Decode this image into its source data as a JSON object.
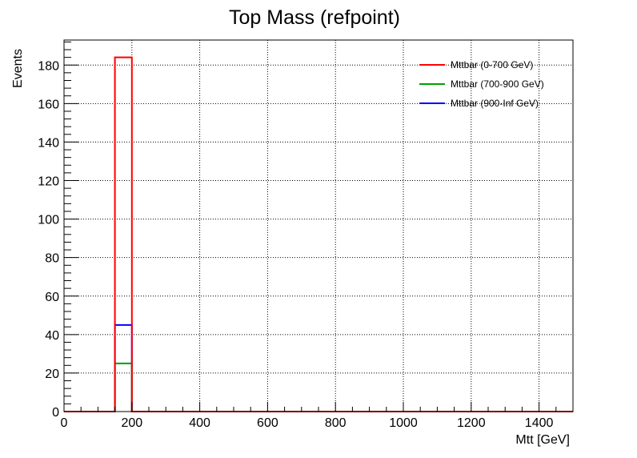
{
  "chart_data": {
    "type": "histogram",
    "title": "Top Mass (refpoint)",
    "xlabel": "Mtt [GeV]",
    "ylabel": "Events",
    "xlim": [
      0,
      1500
    ],
    "ylim": [
      0,
      193
    ],
    "grid": true,
    "legend_position": "top-right",
    "bin_width": 50,
    "x_ticks": [
      0,
      200,
      400,
      600,
      800,
      1000,
      1200,
      1400
    ],
    "y_ticks": [
      0,
      20,
      40,
      60,
      80,
      100,
      120,
      140,
      160,
      180
    ],
    "series": [
      {
        "name": "Mttbar (0-700 GeV)",
        "color": "#ff0000",
        "bins": [
          {
            "x0": 150,
            "x1": 200,
            "value": 184
          }
        ]
      },
      {
        "name": "Mttbar (700-900 GeV)",
        "color": "#00a000",
        "bins": [
          {
            "x0": 150,
            "x1": 200,
            "value": 25
          }
        ]
      },
      {
        "name": "Mttbar (900-Inf GeV)",
        "color": "#0000ff",
        "bins": [
          {
            "x0": 150,
            "x1": 200,
            "value": 45
          }
        ]
      }
    ]
  }
}
